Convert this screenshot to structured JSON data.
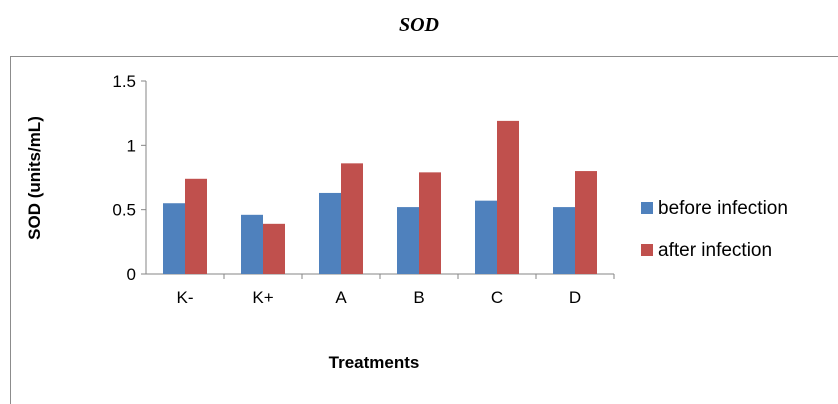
{
  "chart_data": {
    "type": "bar",
    "title": "SOD",
    "xlabel": "Treatments",
    "ylabel": "SOD (units/mL)",
    "categories": [
      "K-",
      "K+",
      "A",
      "B",
      "C",
      "D"
    ],
    "ylim": [
      0,
      1.5
    ],
    "yticks": [
      "0",
      "0.5",
      "1",
      "1.5"
    ],
    "yticks_values": [
      0,
      0.5,
      1,
      1.5
    ],
    "grid": false,
    "legend_position": "right",
    "series": [
      {
        "name": "before infection",
        "color": "#4f81bd",
        "values": [
          0.55,
          0.46,
          0.63,
          0.52,
          0.57,
          0.52
        ]
      },
      {
        "name": "after infection",
        "color": "#c0504d",
        "values": [
          0.74,
          0.39,
          0.86,
          0.79,
          1.19,
          0.8
        ]
      }
    ]
  }
}
